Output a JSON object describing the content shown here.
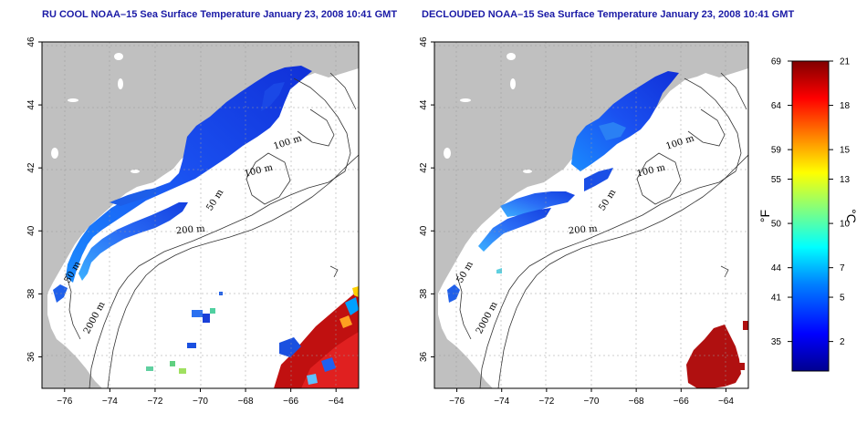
{
  "left_panel": {
    "title": "RU COOL NOAA–15 Sea Surface Temperature January 23, 2008 10:41 GMT",
    "contour_labels": [
      "100 m",
      "100 m",
      "50 m",
      "200 m",
      "50 m",
      "2000 m"
    ]
  },
  "right_panel": {
    "title": "DECLOUDED NOAA–15 Sea Surface Temperature January 23, 2008 10:41 GMT",
    "contour_labels": [
      "100 m",
      "100 m",
      "50 m",
      "200 m",
      "50 m",
      "2000 m"
    ]
  },
  "axes": {
    "lat_ticks": [
      "36",
      "38",
      "40",
      "42",
      "44",
      "46"
    ],
    "lon_ticks": [
      "−76",
      "−74",
      "−72",
      "−70",
      "−68",
      "−66",
      "−64"
    ],
    "lat_values": [
      36,
      38,
      40,
      42,
      44,
      46
    ],
    "lon_values": [
      -76,
      -74,
      -72,
      -70,
      -68,
      -66,
      -64
    ],
    "lon_range": [
      -77,
      -63
    ],
    "lat_range": [
      35,
      46
    ]
  },
  "colorbar": {
    "fahrenheit_label": "°F",
    "celsius_label": "°C",
    "fahrenheit_ticks": [
      "69",
      "64",
      "59",
      "55",
      "50",
      "44",
      "41",
      "35"
    ],
    "celsius_ticks": [
      "21",
      "18",
      "15",
      "13",
      "10",
      "7",
      "5",
      "2"
    ],
    "celsius_values": [
      21,
      18,
      15,
      13,
      10,
      7,
      5,
      2
    ],
    "range_c": [
      0,
      21
    ],
    "colors": [
      "#00008f",
      "#0000ff",
      "#0080ff",
      "#00ffff",
      "#80ff80",
      "#ffff00",
      "#ff8000",
      "#ff0000",
      "#800000"
    ]
  },
  "colors": {
    "land": "#c0c0c0",
    "ocean": "#ffffff",
    "title": "#1a1aa6",
    "cold_water": "#1440e0",
    "warm_water": "#c01010"
  }
}
